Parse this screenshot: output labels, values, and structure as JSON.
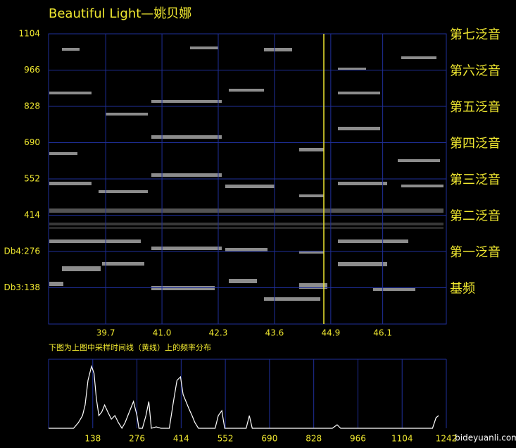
{
  "title": "Beautiful Light—姚贝娜",
  "caption": "下图为上图中采样时间线（黄线）上的频率分布",
  "watermark": "bideyuanli.com",
  "chart_data": [
    {
      "type": "spectrogram",
      "xlim": [
        38.38,
        47.57
      ],
      "xticks": [
        39.7,
        {
          "value": 41,
          "label": "41.0"
        },
        42.3,
        43.6,
        44.9,
        46.1
      ],
      "ylim": [
        0,
        1104
      ],
      "yticks": [
        {
          "value": 138,
          "label": "Db3:138"
        },
        {
          "value": 276,
          "label": "Db4:276"
        },
        414,
        552,
        690,
        828,
        966,
        1104
      ],
      "harmonic_labels": [
        {
          "value": 138,
          "label": "基频"
        },
        {
          "value": 276,
          "label": "第一泛音"
        },
        {
          "value": 414,
          "label": "第二泛音"
        },
        {
          "value": 552,
          "label": "第三泛音"
        },
        {
          "value": 690,
          "label": "第四泛音"
        },
        {
          "value": 828,
          "label": "第五泛音"
        },
        {
          "value": 966,
          "label": "第六泛音"
        },
        {
          "value": 1104,
          "label": "第七泛音"
        }
      ],
      "marker_x": 44.74,
      "marker_color": "#f0e830",
      "grid": true
    },
    {
      "type": "line",
      "xlim": [
        0,
        1242
      ],
      "ylim": [
        0,
        100
      ],
      "xticks": [
        138,
        276,
        414,
        552,
        690,
        828,
        966,
        1104,
        1242
      ],
      "x": [
        0,
        78,
        93,
        106,
        114,
        123,
        134,
        142,
        149,
        157,
        166,
        175,
        185,
        196,
        207,
        218,
        229,
        239,
        252,
        265,
        276,
        282,
        293,
        304,
        313,
        321,
        336,
        351,
        377,
        390,
        401,
        412,
        420,
        429,
        438,
        448,
        457,
        468,
        520,
        530,
        541,
        550,
        617,
        627,
        636,
        886,
        901,
        912,
        1199,
        1210,
        1218
      ],
      "values": [
        0,
        0,
        8.2,
        18.4,
        33.7,
        69.4,
        89.8,
        79.6,
        43.9,
        18.4,
        23.5,
        33.7,
        23.5,
        13.3,
        18.4,
        8.2,
        0,
        8.2,
        23.5,
        38.8,
        18.4,
        0,
        0,
        18.4,
        38.8,
        0,
        2,
        0,
        0,
        38.8,
        69.4,
        74.5,
        49,
        38.8,
        28.6,
        18.4,
        8.2,
        0,
        0,
        18.4,
        25.5,
        0,
        0,
        18.4,
        0,
        0,
        5.1,
        0,
        0,
        15.3,
        18.4
      ],
      "color": "#ffffff",
      "grid": true
    }
  ]
}
